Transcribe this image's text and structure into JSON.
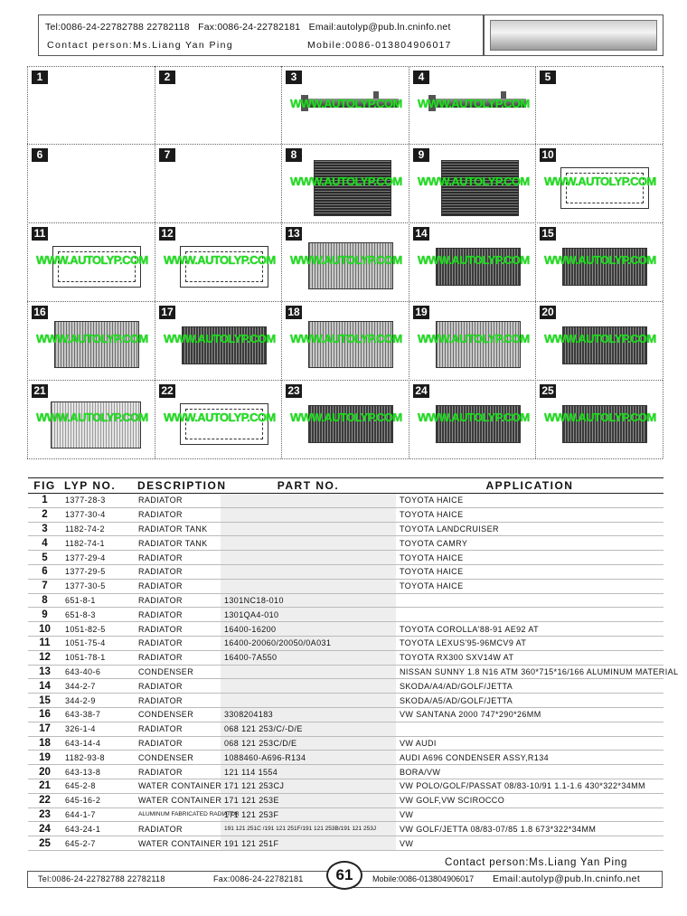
{
  "header": {
    "tel": "Tel:0086-24-22782788  22782118",
    "fax": "Fax:0086-24-22782181",
    "email": "Email:autolyp@pub.ln.cninfo.net",
    "contact": "Contact person:Ms.Liang Yan Ping",
    "mobile": "Mobile:0086-013804906017"
  },
  "watermark": "WWW.AUTOLYP.COM",
  "figures": [
    {
      "no": "1",
      "image": "none"
    },
    {
      "no": "2",
      "image": "none"
    },
    {
      "no": "3",
      "image": "radiator-tank"
    },
    {
      "no": "4",
      "image": "radiator-tank"
    },
    {
      "no": "5",
      "image": "none"
    },
    {
      "no": "6",
      "image": "none"
    },
    {
      "no": "7",
      "image": "none"
    },
    {
      "no": "8",
      "image": "radiator-core"
    },
    {
      "no": "9",
      "image": "radiator-core"
    },
    {
      "no": "10",
      "image": "drawing"
    },
    {
      "no": "11",
      "image": "drawing"
    },
    {
      "no": "12",
      "image": "drawing"
    },
    {
      "no": "13",
      "image": "condenser"
    },
    {
      "no": "14",
      "image": "radiator"
    },
    {
      "no": "15",
      "image": "radiator"
    },
    {
      "no": "16",
      "image": "condenser"
    },
    {
      "no": "17",
      "image": "radiator"
    },
    {
      "no": "18",
      "image": "condenser"
    },
    {
      "no": "19",
      "image": "condenser"
    },
    {
      "no": "20",
      "image": "radiator"
    },
    {
      "no": "21",
      "image": "water-container"
    },
    {
      "no": "22",
      "image": "drawing"
    },
    {
      "no": "23",
      "image": "radiator"
    },
    {
      "no": "24",
      "image": "radiator"
    },
    {
      "no": "25",
      "image": "radiator"
    }
  ],
  "table": {
    "headers": {
      "fig": "FIG",
      "lyp": "LYP NO.",
      "desc": "DESCRIPTION",
      "part": "PART NO.",
      "app": "APPLICATION"
    },
    "rows": [
      {
        "fig": "1",
        "lyp": "1377-28-3",
        "desc": "RADIATOR",
        "part": "",
        "app": "TOYOTA HAICE"
      },
      {
        "fig": "2",
        "lyp": "1377-30-4",
        "desc": "RADIATOR",
        "part": "",
        "app": "TOYOTA HAICE"
      },
      {
        "fig": "3",
        "lyp": "1182-74-2",
        "desc": "RADIATOR TANK",
        "part": "",
        "app": "TOYOTA LANDCRUISER"
      },
      {
        "fig": "4",
        "lyp": "1182-74-1",
        "desc": "RADIATOR TANK",
        "part": "",
        "app": "TOYOTA CAMRY"
      },
      {
        "fig": "5",
        "lyp": "1377-29-4",
        "desc": "RADIATOR",
        "part": "",
        "app": "TOYOTA HAICE"
      },
      {
        "fig": "6",
        "lyp": "1377-29-5",
        "desc": "RADIATOR",
        "part": "",
        "app": "TOYOTA HAICE"
      },
      {
        "fig": "7",
        "lyp": "1377-30-5",
        "desc": "RADIATOR",
        "part": "",
        "app": "TOYOTA HAICE"
      },
      {
        "fig": "8",
        "lyp": "651-8-1",
        "desc": "RADIATOR",
        "part": "1301NC18-010",
        "app": ""
      },
      {
        "fig": "9",
        "lyp": "651-8-3",
        "desc": "RADIATOR",
        "part": "1301QA4-010",
        "app": ""
      },
      {
        "fig": "10",
        "lyp": "1051-82-5",
        "desc": "RADIATOR",
        "part": "16400-16200",
        "app": "TOYOTA COROLLA'88-91 AE92 AT"
      },
      {
        "fig": "11",
        "lyp": "1051-75-4",
        "desc": "RADIATOR",
        "part": "16400-20060/20050/0A031",
        "app": "TOYOTA LEXUS'95-96MCV9 AT"
      },
      {
        "fig": "12",
        "lyp": "1051-78-1",
        "desc": "RADIATOR",
        "part": "16400-7A550",
        "app": "TOYOTA RX300 SXV14W AT"
      },
      {
        "fig": "13",
        "lyp": "643-40-6",
        "desc": "CONDENSER",
        "part": "",
        "app": "NISSAN SUNNY 1.8 N16 ATM 360*715*16/166 ALUMINUM MATERIAL"
      },
      {
        "fig": "14",
        "lyp": "344-2-7",
        "desc": "RADIATOR",
        "part": "",
        "app": "SKODA/A4/AD/GOLF/JETTA"
      },
      {
        "fig": "15",
        "lyp": "344-2-9",
        "desc": "RADIATOR",
        "part": "",
        "app": "SKODA/A5/AD/GOLF/JETTA"
      },
      {
        "fig": "16",
        "lyp": "643-38-7",
        "desc": "CONDENSER",
        "part": "3308204183",
        "app": "VW SANTANA 2000 747*290*26MM"
      },
      {
        "fig": "17",
        "lyp": "326-1-4",
        "desc": "RADIATOR",
        "part": "068 121 253/C/-D/E",
        "app": ""
      },
      {
        "fig": "18",
        "lyp": "643-14-4",
        "desc": "RADIATOR",
        "part": "068 121 253C/D/E",
        "app": "VW AUDI"
      },
      {
        "fig": "19",
        "lyp": "1182-93-8",
        "desc": "CONDENSER",
        "part": "1088460-A696-R134",
        "app": "AUDI A696 CONDENSER ASSY,R134"
      },
      {
        "fig": "20",
        "lyp": "643-13-8",
        "desc": "RADIATOR",
        "part": "121 114 1554",
        "app": "BORA/VW"
      },
      {
        "fig": "21",
        "lyp": "645-2-8",
        "desc": "WATER CONTAINER",
        "part": "171 121 253CJ",
        "app": "VW POLO/GOLF/PASSAT 08/83-10/91 1.1-1.6 430*322*34MM"
      },
      {
        "fig": "22",
        "lyp": "645-16-2",
        "desc": "WATER CONTAINER",
        "part": "171 121 253E",
        "app": "VW GOLF,VW SCIROCCO"
      },
      {
        "fig": "23",
        "lyp": "644-1-7",
        "desc": "ALUMINUM FABRICATED RADIATOR",
        "part": "171 121 253F",
        "app": "VW",
        "desc_small": true
      },
      {
        "fig": "24",
        "lyp": "643-24-1",
        "desc": "RADIATOR",
        "part": "191 121 251C /191 121 251F/191 121 253B/191 121 253J",
        "app": "VW GOLF/JETTA 08/83-07/85 1.8 673*322*34MM",
        "part_small": true
      },
      {
        "fig": "25",
        "lyp": "645-2-7",
        "desc": "WATER CONTAINER",
        "part": "191 121 251F",
        "app": "VW"
      }
    ]
  },
  "footer": {
    "contact": "Contact person:Ms.Liang Yan Ping",
    "tel": "Tel:0086-24-22782788  22782118",
    "fax": "Fax:0086-24-22782181",
    "mobile": "Mobile:0086-013804906017",
    "email": "Email:autolyp@pub.ln.cninfo.net",
    "page": "61"
  }
}
